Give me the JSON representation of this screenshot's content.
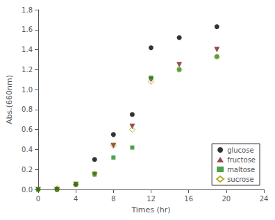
{
  "chart_data": {
    "type": "scatter",
    "x_label": "Times (hr)",
    "y_label": "Abs.(660nm)",
    "x": [
      0,
      2,
      4,
      6,
      8,
      10,
      12,
      15,
      19
    ],
    "series": [
      {
        "name": "glucose",
        "color": "black",
        "marker": "circle",
        "values": [
          0.0,
          0.0,
          0.05,
          0.3,
          0.55,
          0.75,
          1.42,
          1.52,
          1.63
        ]
      },
      {
        "name": "fructose",
        "color": "#7B2020",
        "marker": "triangle-down",
        "values": [
          0.0,
          0.0,
          0.05,
          0.15,
          0.44,
          0.63,
          1.1,
          1.25,
          1.4
        ]
      },
      {
        "name": "maltose",
        "color": "#228B22",
        "marker": "square",
        "values": [
          0.0,
          0.0,
          0.05,
          0.15,
          0.32,
          0.42,
          1.12,
          1.2,
          1.33
        ]
      },
      {
        "name": "sucrose",
        "color": "#999900",
        "marker": "diamond-open",
        "values": [
          0.0,
          0.01,
          0.05,
          0.16,
          0.44,
          0.6,
          1.08,
          1.2,
          1.33
        ]
      }
    ],
    "xlim": [
      0,
      24
    ],
    "ylim": [
      0,
      1.8
    ],
    "xticks": [
      0,
      4,
      8,
      12,
      16,
      20,
      24
    ],
    "yticks": [
      {
        "value": 0,
        "label": "0.0"
      },
      0.2,
      0.4,
      0.6,
      0.8,
      {
        "value": 1,
        "label": "1.0"
      },
      1.2,
      1.4,
      1.6,
      1.8
    ],
    "grid": false,
    "legend": "lower right"
  }
}
